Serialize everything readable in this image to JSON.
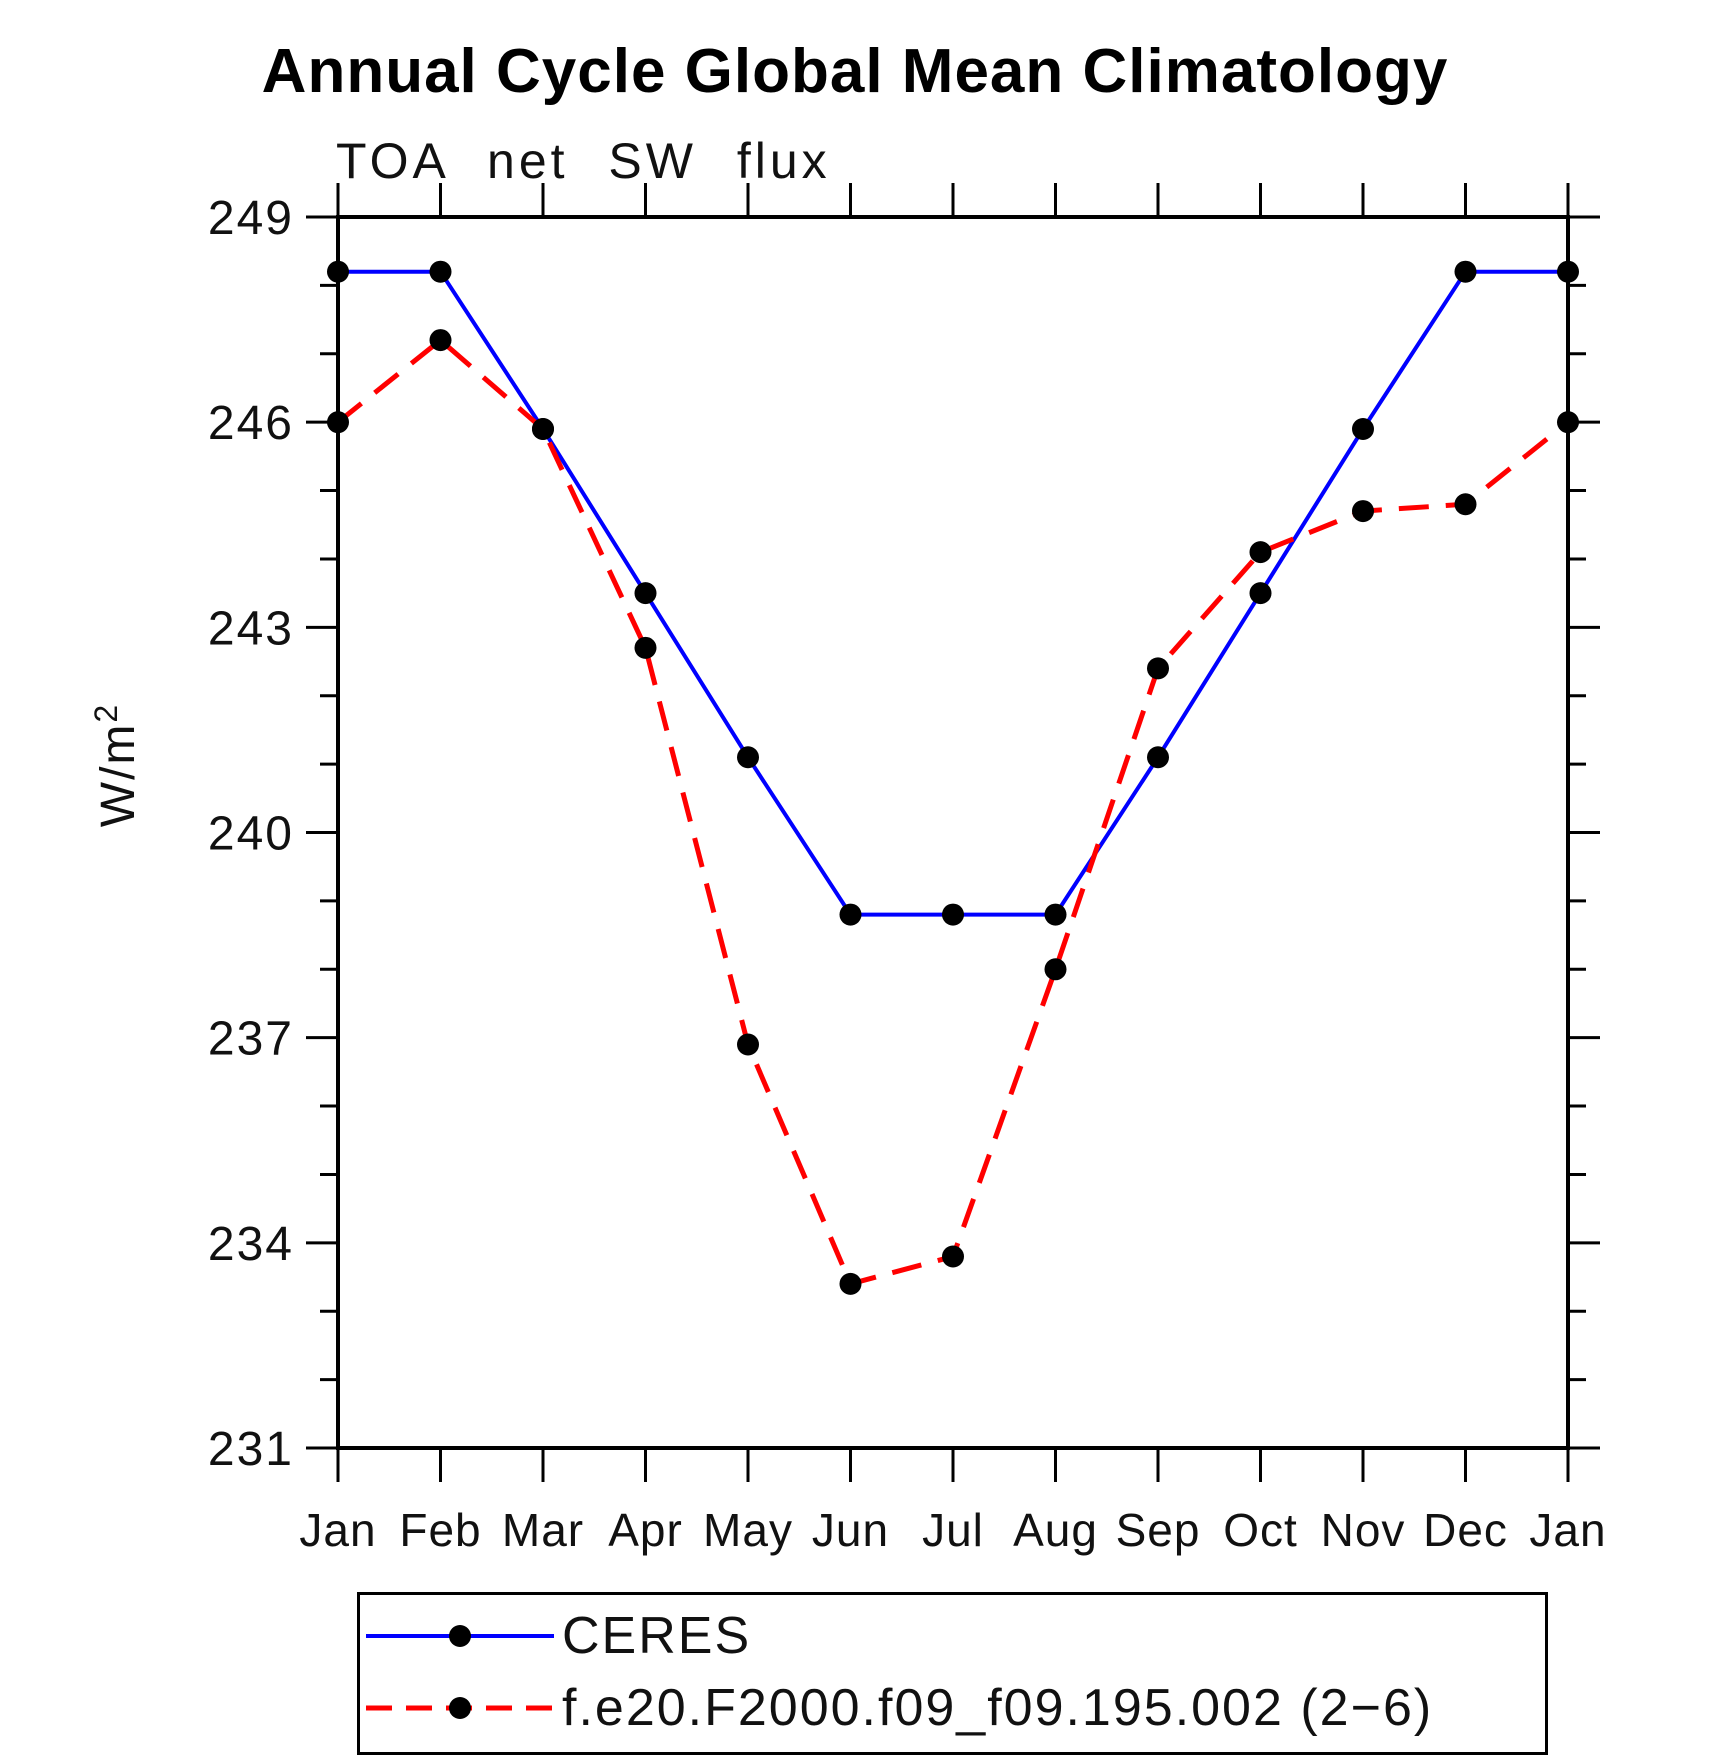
{
  "chart_data": {
    "type": "line",
    "title": "Annual Cycle Global Mean Climatology",
    "subtitle": "TOA net SW flux",
    "ylabel": "W/m²",
    "ylabel_base": "W/m",
    "ylabel_exponent": "2",
    "xlabel": "",
    "categories": [
      "Jan",
      "Feb",
      "Mar",
      "Apr",
      "May",
      "Jun",
      "Jul",
      "Aug",
      "Sep",
      "Oct",
      "Nov",
      "Dec",
      "Jan"
    ],
    "ylim": [
      231,
      249
    ],
    "ytick_major": [
      231,
      234,
      237,
      240,
      243,
      246,
      249
    ],
    "ytick_minor_step": 1,
    "grid": false,
    "legend_position": "bottom-left",
    "axis_color": "#000000",
    "marker_color": "#000000",
    "series": [
      {
        "name": "CERES",
        "color": "#0000ff",
        "style": "solid",
        "values": [
          248.2,
          248.2,
          245.9,
          243.5,
          241.1,
          238.8,
          238.8,
          238.8,
          241.1,
          243.5,
          245.9,
          248.2,
          248.2
        ]
      },
      {
        "name": "f.e20.F2000.f09_f09.195.002 (2−6)",
        "color": "#ff0000",
        "style": "dashed",
        "values": [
          246.0,
          247.2,
          245.9,
          242.7,
          236.9,
          233.4,
          233.8,
          238.0,
          242.4,
          244.1,
          244.7,
          244.8,
          246.0
        ]
      }
    ]
  }
}
